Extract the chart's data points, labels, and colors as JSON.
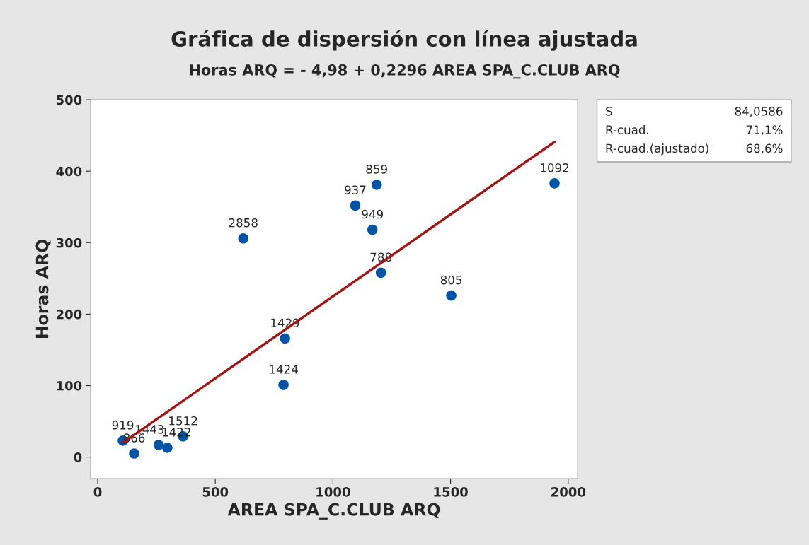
{
  "chart_data": {
    "type": "scatter",
    "title": "Gráfica de dispersión con línea ajustada",
    "subtitle": "Horas ARQ = - 4,98 + 0,2296 AREA SPA_C.CLUB ARQ",
    "xlabel": "AREA SPA_C.CLUB ARQ",
    "ylabel": "Horas ARQ",
    "series": [
      {
        "type": "scatter",
        "color": "#0054a6",
        "x": [
          107,
          155,
          259,
          296,
          363,
          619,
          796,
          790,
          1095,
          1186,
          1168,
          1204,
          1503,
          1942
        ],
        "values": [
          23,
          5,
          17,
          13,
          29,
          306,
          166,
          101,
          352,
          381,
          318,
          258,
          226,
          383
        ],
        "marker": "circle"
      },
      {
        "type": "line",
        "color": "#a31515",
        "x": [
          107,
          1942
        ],
        "values": [
          20,
          441
        ],
        "marker": "none",
        "line_style": "solid"
      }
    ],
    "annotations": [
      {
        "text": "919",
        "x": 107,
        "y": 23
      },
      {
        "text": "866",
        "x": 155,
        "y": 5
      },
      {
        "text": "1443",
        "x": 259,
        "y": 17
      },
      {
        "text": "1422",
        "x": 296,
        "y": 13
      },
      {
        "text": "1512",
        "x": 363,
        "y": 29
      },
      {
        "text": "2858",
        "x": 619,
        "y": 306
      },
      {
        "text": "1429",
        "x": 796,
        "y": 166
      },
      {
        "text": "1424",
        "x": 790,
        "y": 101
      },
      {
        "text": "937",
        "x": 1095,
        "y": 352
      },
      {
        "text": "859",
        "x": 1186,
        "y": 381
      },
      {
        "text": "949",
        "x": 1168,
        "y": 318
      },
      {
        "text": "788",
        "x": 1204,
        "y": 258
      },
      {
        "text": "805",
        "x": 1503,
        "y": 226
      },
      {
        "text": "1092",
        "x": 1942,
        "y": 383
      },
      "S",
      "84,0586",
      "R-cuad.",
      "71,1%",
      "R-cuad.(ajustado)",
      "68,6%"
    ],
    "xlim": [
      -30,
      2040
    ],
    "ylim": [
      -30,
      500
    ],
    "xticks": [
      0,
      500,
      1000,
      1500,
      2000
    ],
    "yticks": [
      0,
      100,
      200,
      300,
      400,
      500
    ],
    "grid": false,
    "legend": false
  }
}
